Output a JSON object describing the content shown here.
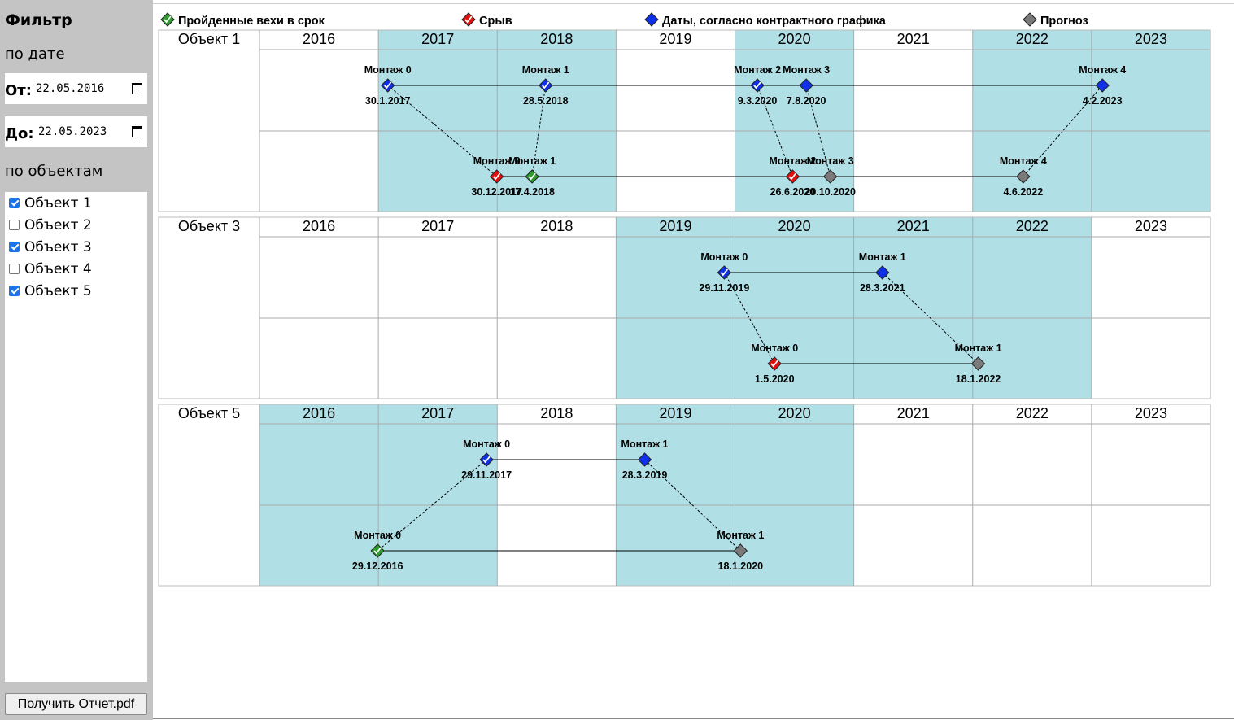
{
  "sidebar": {
    "title": "Фильтр",
    "by_date": "по дате",
    "from_label": "От:",
    "from_value": "22.05.2016",
    "to_label": "До:",
    "to_value": "22.05.2023",
    "by_objects": "по объектам",
    "objects": [
      {
        "label": "Объект 1",
        "checked": true
      },
      {
        "label": "Объект 2",
        "checked": false
      },
      {
        "label": "Объект 3",
        "checked": true
      },
      {
        "label": "Объект 4",
        "checked": false
      },
      {
        "label": "Объект 5",
        "checked": true
      }
    ],
    "report_button": "Получить Отчет.pdf"
  },
  "legend": [
    {
      "label": "Пройденные вехи в срок",
      "color": "#2e9c2e",
      "check": true
    },
    {
      "label": "Срыв",
      "color": "#e31010",
      "check": true
    },
    {
      "label": "Даты, согласно контрактного графика",
      "color": "#1030e8",
      "check": false
    },
    {
      "label": "Прогноз",
      "color": "#7a7a7a",
      "check": false
    }
  ],
  "colors": {
    "highlight": "#b0e0e6",
    "grid": "#aaaaaa",
    "border": "#bbbbbb"
  },
  "years": [
    "2016",
    "2017",
    "2018",
    "2019",
    "2020",
    "2021",
    "2022",
    "2023"
  ],
  "chart_data": [
    {
      "type": "timeline",
      "title": "Объект 1",
      "highlight_years": [
        "2017",
        "2018",
        "2020",
        "2022",
        "2023"
      ],
      "contract": [
        {
          "name": "Монтаж 0",
          "date": "30.1.2017",
          "status": "blue",
          "check": true
        },
        {
          "name": "Монтаж 1",
          "date": "28.5.2018",
          "status": "blue",
          "check": true
        },
        {
          "name": "Монтаж 2",
          "date": "9.3.2020",
          "status": "blue",
          "check": true
        },
        {
          "name": "Монтаж 3",
          "date": "7.8.2020",
          "status": "blue",
          "check": false
        },
        {
          "name": "Монтаж 4",
          "date": "4.2.2023",
          "status": "blue",
          "check": false
        }
      ],
      "actual": [
        {
          "name": "Монтаж 0",
          "date": "30.12.2017",
          "status": "red",
          "check": true
        },
        {
          "name": "Монтаж 1",
          "date": "17.4.2018",
          "status": "green",
          "check": true
        },
        {
          "name": "Монтаж 2",
          "date": "26.6.2020",
          "status": "red",
          "check": true
        },
        {
          "name": "Монтаж 3",
          "date": "20.10.2020",
          "status": "gray",
          "check": false
        },
        {
          "name": "Монтаж 4",
          "date": "4.6.2022",
          "status": "gray",
          "check": false
        }
      ]
    },
    {
      "type": "timeline",
      "title": "Объект 3",
      "highlight_years": [
        "2019",
        "2020",
        "2021",
        "2022"
      ],
      "contract": [
        {
          "name": "Монтаж 0",
          "date": "29.11.2019",
          "status": "blue",
          "check": true
        },
        {
          "name": "Монтаж 1",
          "date": "28.3.2021",
          "status": "blue",
          "check": false
        }
      ],
      "actual": [
        {
          "name": "Монтаж 0",
          "date": "1.5.2020",
          "status": "red",
          "check": true
        },
        {
          "name": "Монтаж 1",
          "date": "18.1.2022",
          "status": "gray",
          "check": false
        }
      ]
    },
    {
      "type": "timeline",
      "title": "Объект 5",
      "highlight_years": [
        "2016",
        "2017",
        "2019",
        "2020"
      ],
      "contract": [
        {
          "name": "Монтаж 0",
          "date": "29.11.2017",
          "status": "blue",
          "check": true
        },
        {
          "name": "Монтаж 1",
          "date": "28.3.2019",
          "status": "blue",
          "check": false
        }
      ],
      "actual": [
        {
          "name": "Монтаж 0",
          "date": "29.12.2016",
          "status": "green",
          "check": true
        },
        {
          "name": "Монтаж 1",
          "date": "18.1.2020",
          "status": "gray",
          "check": false
        }
      ]
    }
  ]
}
